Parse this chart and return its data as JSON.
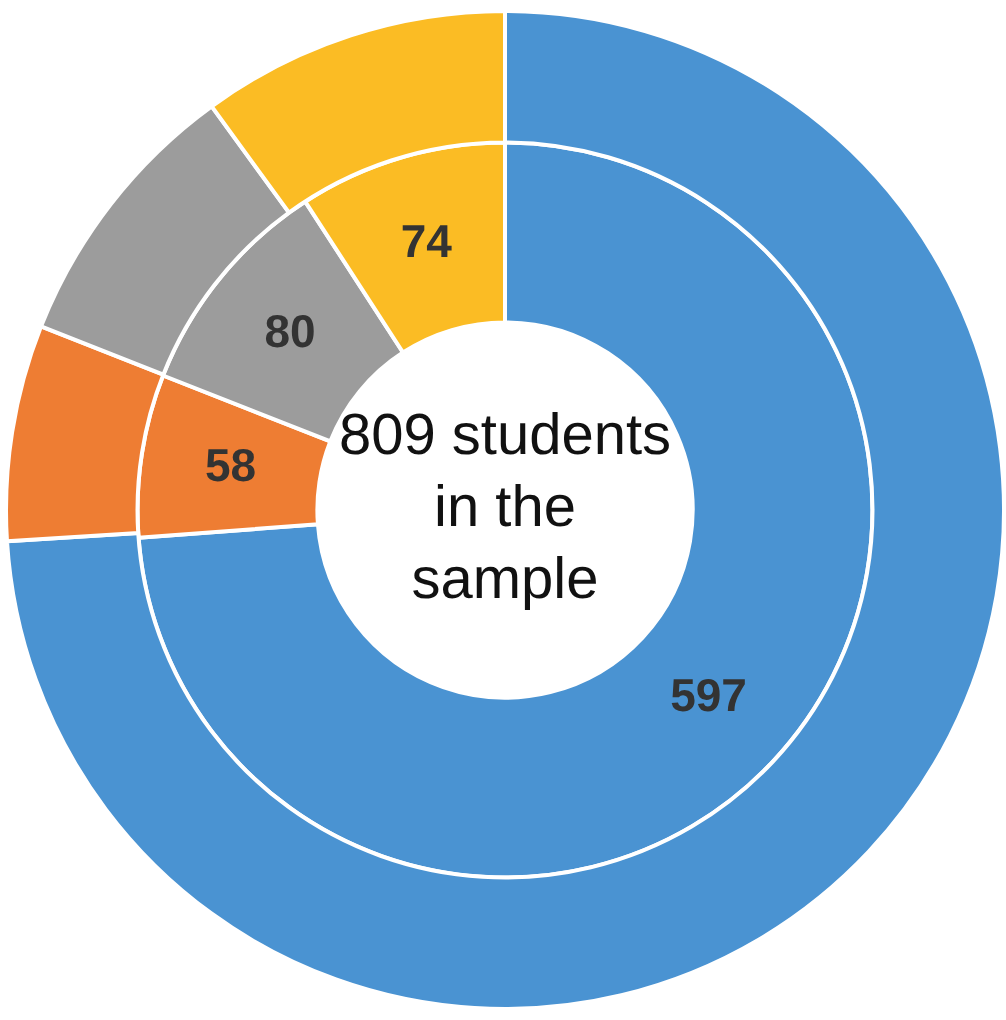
{
  "chart_data": {
    "type": "donut",
    "categories": [
      null,
      null,
      null,
      null
    ],
    "series": [
      {
        "values": [
          597,
          58,
          80,
          74
        ],
        "colors": [
          "#4a93d2",
          "#ee7d33",
          "#9c9c9c",
          "#fbbc24"
        ],
        "value_labels": [
          "597",
          "58",
          "80",
          "74"
        ]
      },
      {
        "values": [
          74,
          7,
          9,
          10
        ],
        "colors": [
          "#4a93d2",
          "#ee7d33",
          "#9c9c9c",
          "#fbbc24"
        ]
      }
    ],
    "annotations": [
      "809 students in the sample"
    ]
  }
}
